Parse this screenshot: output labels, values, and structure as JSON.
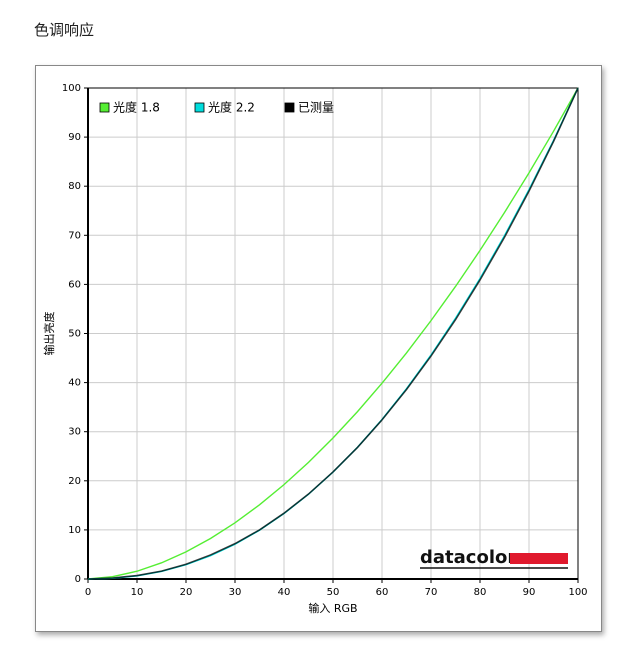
{
  "page_title": "色调响应",
  "logo": "datacolor",
  "chart_data": {
    "type": "line",
    "xlabel": "输入 RGB",
    "ylabel": "输出亮度",
    "x": [
      0,
      5,
      10,
      15,
      20,
      25,
      30,
      35,
      40,
      45,
      50,
      55,
      60,
      65,
      70,
      75,
      80,
      85,
      90,
      95,
      100
    ],
    "series": [
      {
        "name": "光度 1.8",
        "color": "#55ee33",
        "values": [
          0,
          0.46,
          1.58,
          3.29,
          5.52,
          8.25,
          11.45,
          15.11,
          19.22,
          23.76,
          28.72,
          34.09,
          39.87,
          46.05,
          52.62,
          59.58,
          66.92,
          74.64,
          82.72,
          91.18,
          100
        ]
      },
      {
        "name": "光度 2.2",
        "color": "#00dddd",
        "values": [
          0,
          0.14,
          0.63,
          1.54,
          2.9,
          4.74,
          7.08,
          9.93,
          13.32,
          17.26,
          21.76,
          26.84,
          32.5,
          38.76,
          45.63,
          53.1,
          61.21,
          69.94,
          79.31,
          89.33,
          100
        ]
      },
      {
        "name": "已测量",
        "color": "#000000",
        "values": [
          0,
          0.2,
          0.7,
          1.6,
          3.0,
          4.9,
          7.2,
          10.0,
          13.4,
          17.3,
          21.8,
          26.8,
          32.4,
          38.6,
          45.4,
          52.8,
          60.9,
          69.6,
          79.0,
          89.1,
          100
        ]
      }
    ],
    "xlim": [
      0,
      100
    ],
    "ylim": [
      0,
      100
    ],
    "xticks": [
      0,
      10,
      20,
      30,
      40,
      50,
      60,
      70,
      80,
      90,
      100
    ],
    "yticks": [
      0,
      10,
      20,
      30,
      40,
      50,
      60,
      70,
      80,
      90,
      100
    ],
    "grid": true,
    "legend": "top-left"
  }
}
